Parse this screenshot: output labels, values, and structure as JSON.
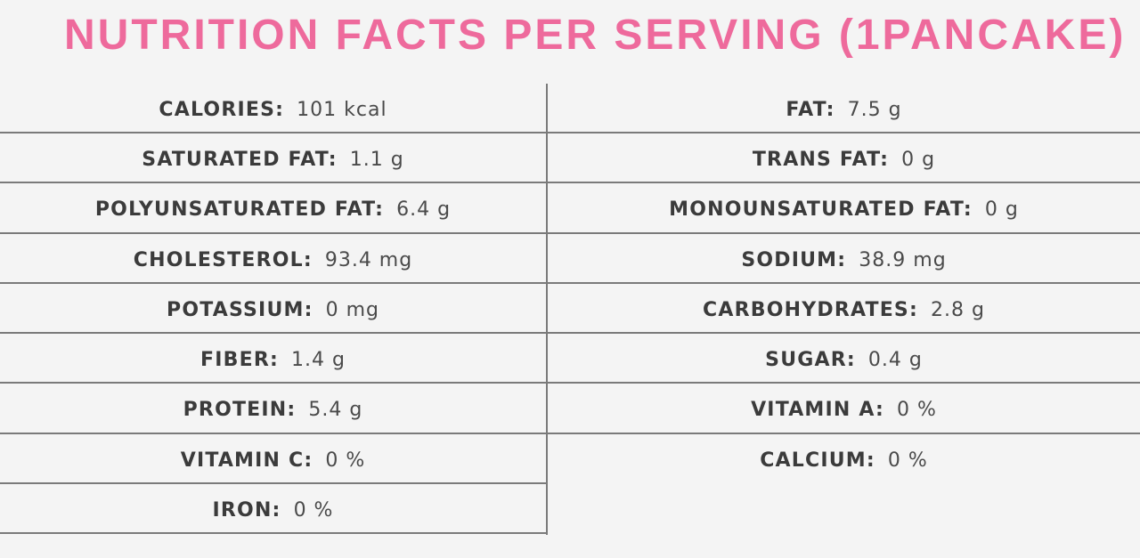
{
  "title": "NUTRITION FACTS PER SERVING (1PANCAKE)",
  "accent_color": "#ee6a9c",
  "left": [
    {
      "label": "CALORIES:",
      "value": "101 kcal"
    },
    {
      "label": "SATURATED FAT:",
      "value": "1.1 g"
    },
    {
      "label": "POLYUNSATURATED FAT:",
      "value": "6.4 g"
    },
    {
      "label": "CHOLESTEROL:",
      "value": "93.4 mg"
    },
    {
      "label": "POTASSIUM:",
      "value": "0 mg"
    },
    {
      "label": "FIBER:",
      "value": "1.4 g"
    },
    {
      "label": "PROTEIN:",
      "value": "5.4 g"
    },
    {
      "label": "VITAMIN C:",
      "value": "0 %"
    },
    {
      "label": "IRON:",
      "value": "0 %"
    }
  ],
  "right": [
    {
      "label": "FAT:",
      "value": "7.5 g"
    },
    {
      "label": "TRANS FAT:",
      "value": "0 g"
    },
    {
      "label": "MONOUNSATURATED FAT:",
      "value": "0 g"
    },
    {
      "label": "SODIUM:",
      "value": "38.9 mg"
    },
    {
      "label": "CARBOHYDRATES:",
      "value": "2.8 g"
    },
    {
      "label": "SUGAR:",
      "value": "0.4 g"
    },
    {
      "label": "VITAMIN A:",
      "value": "0 %"
    },
    {
      "label": "CALCIUM:",
      "value": "0 %"
    }
  ]
}
